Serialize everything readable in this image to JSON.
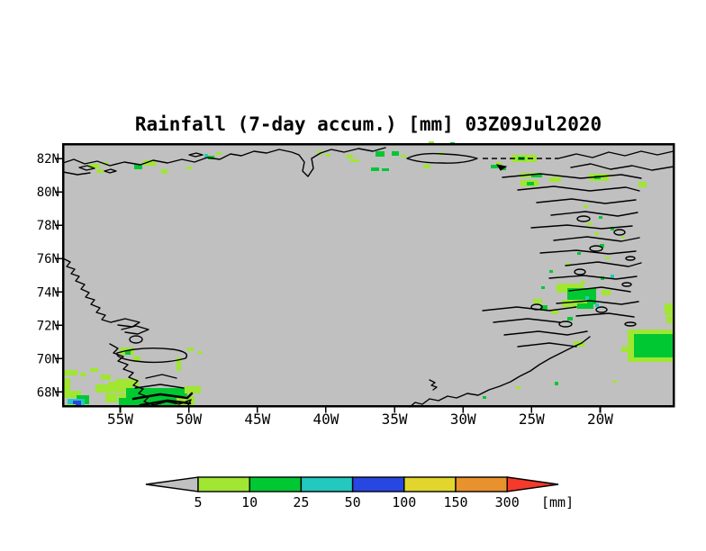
{
  "chart_data": {
    "type": "heatmap",
    "subtype": "filled-contour-geographic-map",
    "title": "Rainfall (7-day accum.) [mm] 03Z09Jul2020",
    "region": "Greenland",
    "grid": "off",
    "x_axis": {
      "ticks": [
        "55W",
        "50W",
        "45W",
        "40W",
        "35W",
        "30W",
        "25W",
        "20W"
      ],
      "range_lon_west_deg": [
        59.2,
        14.5
      ]
    },
    "y_axis": {
      "ticks": [
        "82N",
        "80N",
        "78N",
        "76N",
        "74N",
        "72N",
        "70N",
        "68N"
      ],
      "range_lat_north_deg": [
        67.1,
        82.9
      ]
    },
    "map_background_color": "#c0c0c0",
    "coastline_color": "#000000",
    "level_colors": {
      "lg": "#a0e632",
      "g": "#00c832",
      "c": "#23c8be",
      "b": "#2846e1"
    },
    "level_meaning_mm": {
      "lg": "5-10",
      "g": "10-25",
      "c": "25-50",
      "b": "50-100"
    },
    "rain_cells": [
      [
        "lg",
        99,
        182,
        11,
        5
      ],
      [
        "lg",
        107,
        188,
        8,
        4
      ],
      [
        "lg",
        114,
        180,
        6,
        3
      ],
      [
        "g",
        149,
        182,
        9,
        6
      ],
      [
        "lg",
        159,
        178,
        14,
        6
      ],
      [
        "lg",
        179,
        188,
        7,
        5
      ],
      [
        "lg",
        207,
        185,
        6,
        3
      ],
      [
        "c",
        227,
        171,
        4,
        4
      ],
      [
        "g",
        231,
        173,
        7,
        4
      ],
      [
        "lg",
        240,
        169,
        6,
        3
      ],
      [
        "lg",
        352,
        168,
        7,
        4
      ],
      [
        "lg",
        362,
        171,
        5,
        3
      ],
      [
        "g",
        435,
        168,
        8,
        5
      ],
      [
        "lg",
        445,
        172,
        6,
        3
      ],
      [
        "lg",
        384,
        172,
        8,
        4
      ],
      [
        "lg",
        389,
        177,
        10,
        3
      ],
      [
        "g",
        417,
        168,
        10,
        6
      ],
      [
        "g",
        412,
        186,
        9,
        4
      ],
      [
        "g",
        424,
        187,
        8,
        3
      ],
      [
        "lg",
        470,
        183,
        8,
        4
      ],
      [
        "lg",
        487,
        169,
        6,
        3
      ],
      [
        "lg",
        476,
        157,
        6,
        3
      ],
      [
        "g",
        500,
        158,
        5,
        3
      ],
      [
        "lg",
        551,
        180,
        6,
        3
      ],
      [
        "lg",
        568,
        172,
        28,
        8
      ],
      [
        "g",
        575,
        174,
        8,
        4
      ],
      [
        "g",
        545,
        183,
        8,
        4
      ],
      [
        "g",
        558,
        186,
        4,
        3
      ],
      [
        "lg",
        577,
        192,
        24,
        5
      ],
      [
        "g",
        590,
        193,
        12,
        4
      ],
      [
        "lg",
        578,
        200,
        20,
        7
      ],
      [
        "g",
        585,
        202,
        8,
        4
      ],
      [
        "lg",
        610,
        197,
        13,
        5
      ],
      [
        "lg",
        654,
        193,
        22,
        8
      ],
      [
        "g",
        660,
        195,
        7,
        4
      ],
      [
        "lg",
        709,
        202,
        9,
        6
      ],
      [
        "lg",
        648,
        228,
        5,
        3
      ],
      [
        "g",
        665,
        240,
        4,
        3
      ],
      [
        "lg",
        652,
        247,
        6,
        3
      ],
      [
        "g",
        678,
        252,
        4,
        4
      ],
      [
        "lg",
        660,
        258,
        5,
        3
      ],
      [
        "g",
        666,
        271,
        5,
        4
      ],
      [
        "lg",
        690,
        262,
        4,
        3
      ],
      [
        "g",
        641,
        280,
        4,
        3
      ],
      [
        "lg",
        672,
        285,
        5,
        3
      ],
      [
        "c",
        678,
        305,
        4,
        4
      ],
      [
        "g",
        667,
        307,
        4,
        4
      ],
      [
        "lg",
        645,
        312,
        5,
        3
      ],
      [
        "g",
        610,
        300,
        4,
        3
      ],
      [
        "lg",
        628,
        292,
        5,
        3
      ],
      [
        "g",
        601,
        318,
        4,
        3
      ],
      [
        "lg",
        618,
        315,
        30,
        10
      ],
      [
        "g",
        630,
        320,
        32,
        18
      ],
      [
        "lg",
        624,
        333,
        28,
        8
      ],
      [
        "c",
        650,
        329,
        4,
        4
      ],
      [
        "c",
        661,
        337,
        4,
        4
      ],
      [
        "g",
        641,
        337,
        18,
        6
      ],
      [
        "lg",
        668,
        322,
        10,
        6
      ],
      [
        "lg",
        738,
        337,
        10,
        13
      ],
      [
        "lg",
        740,
        351,
        8,
        8
      ],
      [
        "lg",
        592,
        332,
        10,
        5
      ],
      [
        "g",
        600,
        339,
        8,
        6
      ],
      [
        "lg",
        612,
        345,
        8,
        4
      ],
      [
        "g",
        630,
        352,
        6,
        4
      ],
      [
        "lg",
        637,
        379,
        12,
        6
      ],
      [
        "lg",
        573,
        429,
        5,
        3
      ],
      [
        "g",
        536,
        440,
        4,
        3
      ],
      [
        "g",
        616,
        424,
        4,
        4
      ],
      [
        "lg",
        681,
        422,
        4,
        3
      ],
      [
        "lg",
        697,
        366,
        50,
        36
      ],
      [
        "g",
        704,
        371,
        43,
        26
      ],
      [
        "lg",
        690,
        385,
        7,
        6
      ],
      [
        "lg",
        70,
        411,
        16,
        6
      ],
      [
        "lg",
        89,
        414,
        7,
        4
      ],
      [
        "lg",
        100,
        409,
        9,
        4
      ],
      [
        "lg",
        112,
        416,
        11,
        6
      ],
      [
        "lg",
        70,
        420,
        8,
        14
      ],
      [
        "lg",
        70,
        434,
        20,
        8
      ],
      [
        "g",
        85,
        439,
        14,
        10
      ],
      [
        "c",
        75,
        443,
        19,
        8
      ],
      [
        "b",
        81,
        445,
        9,
        6
      ],
      [
        "lg",
        70,
        449,
        14,
        3
      ],
      [
        "lg",
        106,
        427,
        17,
        9
      ],
      [
        "lg",
        117,
        437,
        13,
        10
      ],
      [
        "lg",
        120,
        424,
        28,
        12
      ],
      [
        "lg",
        131,
        437,
        26,
        9
      ],
      [
        "g",
        140,
        431,
        68,
        21
      ],
      [
        "g",
        132,
        442,
        78,
        10
      ],
      [
        "lg",
        128,
        421,
        26,
        8
      ],
      [
        "lg",
        205,
        429,
        18,
        8
      ],
      [
        "lg",
        196,
        440,
        20,
        12
      ],
      [
        "lg",
        133,
        386,
        16,
        8
      ],
      [
        "g",
        139,
        389,
        6,
        5
      ],
      [
        "lg",
        148,
        396,
        8,
        6
      ],
      [
        "lg",
        196,
        397,
        5,
        15
      ],
      [
        "lg",
        208,
        386,
        7,
        4
      ],
      [
        "lg",
        220,
        390,
        5,
        3
      ]
    ]
  },
  "colorbar": {
    "labels": [
      "5",
      "10",
      "25",
      "50",
      "100",
      "150",
      "300"
    ],
    "units_label": "[mm]",
    "segment_colors": [
      "#a0e632",
      "#00c832",
      "#23c8be",
      "#2846e1",
      "#e2d62e",
      "#e8922d"
    ],
    "left_arrow_color": "#c0c0c0",
    "right_arrow_color": "#f5392b",
    "outline_color": "#000000"
  }
}
